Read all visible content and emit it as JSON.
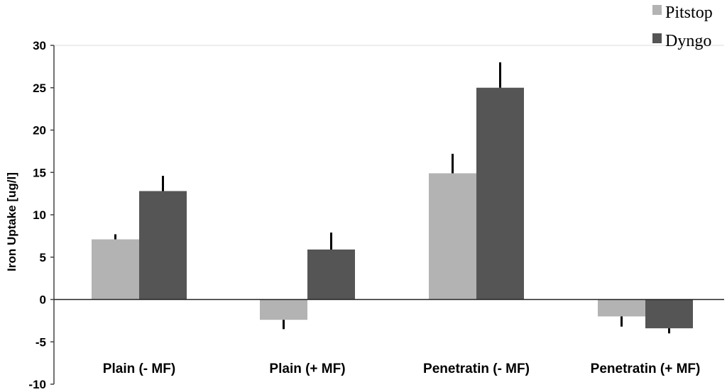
{
  "chart_data": {
    "type": "bar",
    "title": "",
    "xlabel": "",
    "ylabel": "Iron Uptake [ug/l]",
    "ylim": [
      -10,
      30
    ],
    "yticks": [
      -10,
      -5,
      0,
      5,
      10,
      15,
      20,
      25,
      30
    ],
    "categories": [
      "Plain (- MF)",
      "Plain (+ MF)",
      "Penetratin (- MF)",
      "Penetratin (+ MF)"
    ],
    "series": [
      {
        "name": "Pitstop",
        "color": "#b3b3b3",
        "values": [
          7.1,
          -2.4,
          14.9,
          -2.0
        ],
        "errors": [
          0.6,
          1.1,
          2.3,
          1.2
        ]
      },
      {
        "name": "Dyngo",
        "color": "#555555",
        "values": [
          12.8,
          5.9,
          25.0,
          -3.4
        ],
        "errors": [
          1.8,
          2.0,
          3.0,
          0.6
        ]
      }
    ],
    "legend_position": "top-right",
    "grid": false
  }
}
